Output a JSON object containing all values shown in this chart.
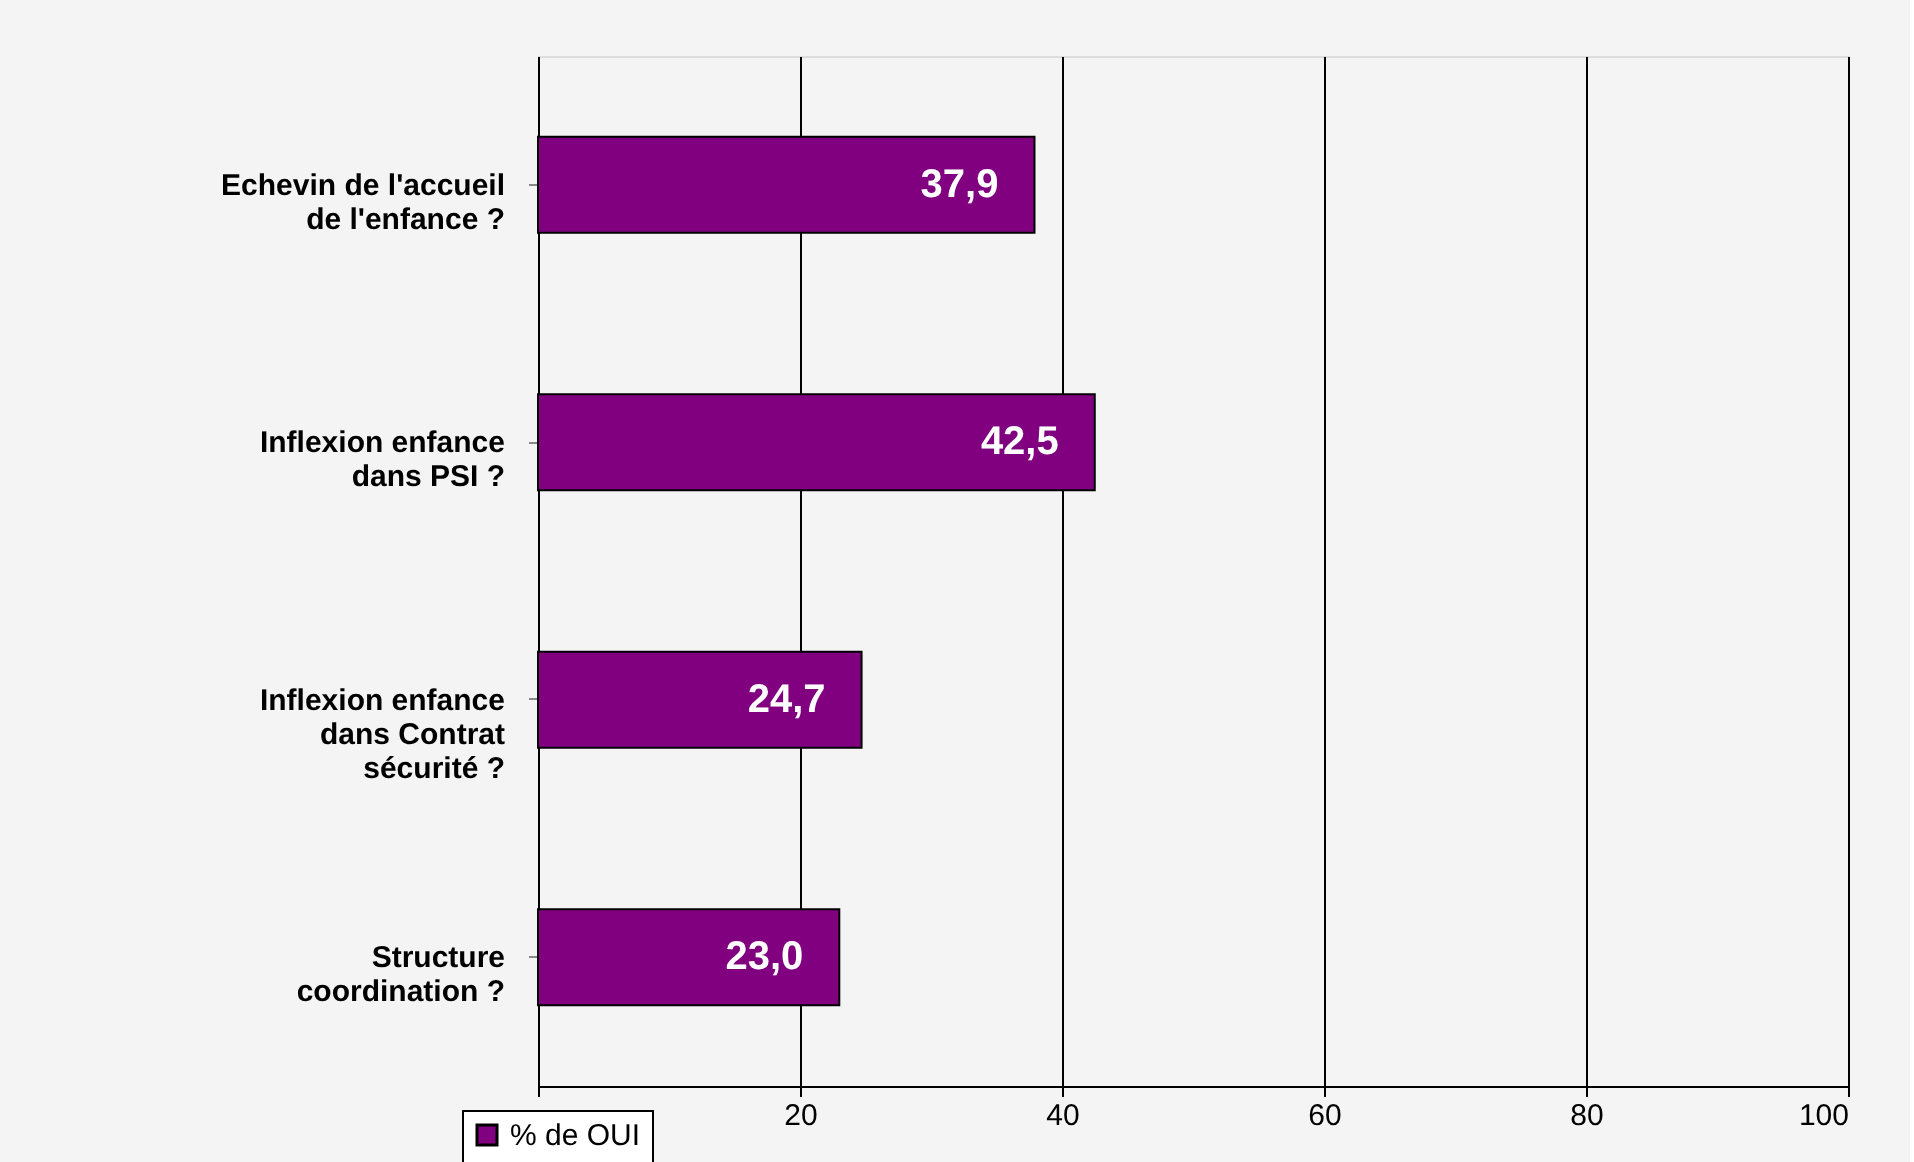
{
  "chart_data": {
    "type": "bar",
    "orientation": "horizontal",
    "categories": [
      "Echevin de l'accueil de l'enfance ?",
      "Inflexion enfance dans PSI ?",
      "Inflexion enfance dans Contrat sécurité ?",
      "Structure coordination ?"
    ],
    "series": [
      {
        "name": "% de OUI",
        "color": "#800080",
        "values": [
          37.9,
          42.5,
          24.7,
          23.0
        ]
      }
    ],
    "value_labels": [
      "37,9",
      "42,5",
      "24,7",
      "23,0"
    ],
    "xlim": [
      0,
      100
    ],
    "xticks": [
      {
        "value": 0,
        "label": null
      },
      20,
      40,
      60,
      80,
      100
    ],
    "grid": "x",
    "legend": "bottom left"
  }
}
